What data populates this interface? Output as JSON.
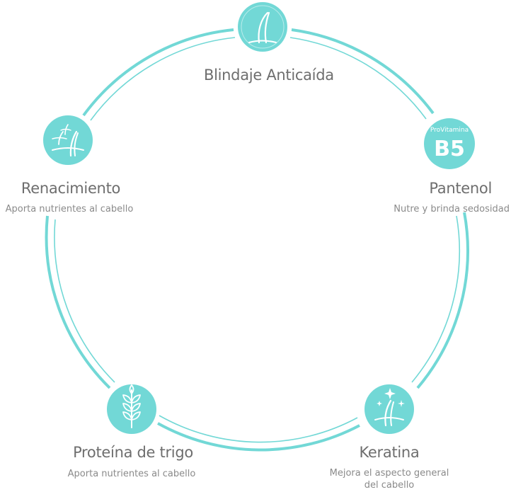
{
  "colors": {
    "accent": "#72d8d6",
    "accent_dark": "#5ccfcc",
    "title_text": "#6e6e6e",
    "sub_text": "#8a8a8a"
  },
  "nodes": {
    "top": {
      "title": "Blindaje Anticaída",
      "icon": "hair-strand-icon"
    },
    "right": {
      "title": "Pantenol",
      "subtitle": "Nutre y brinda sedosidad",
      "icon": "provitamin-b5-badge",
      "badge_small": "ProVitamina",
      "badge_big": "B5"
    },
    "left": {
      "title": "Renacimiento",
      "subtitle": "Aporta nutrientes al cabello",
      "icon": "hair-growth-icon"
    },
    "bottom_left": {
      "title": "Proteína de trigo",
      "subtitle": "Aporta nutrientes al cabello",
      "icon": "wheat-icon"
    },
    "bottom_right": {
      "title": "Keratina",
      "subtitle_line1": "Mejora el aspecto general",
      "subtitle_line2": "del cabello",
      "icon": "sparkle-hair-icon"
    }
  }
}
